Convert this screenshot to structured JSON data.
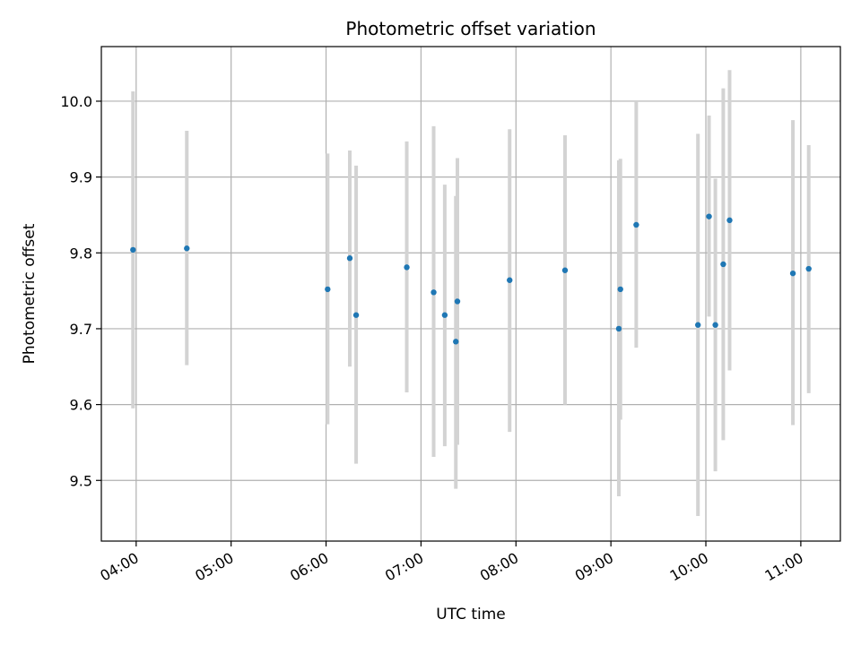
{
  "chart_data": {
    "type": "scatter",
    "title": "Photometric offset variation",
    "xlabel": "UTC time",
    "ylabel": "Photometric offset",
    "x_ticks": [
      "04:00",
      "05:00",
      "06:00",
      "07:00",
      "08:00",
      "09:00",
      "10:00",
      "11:00"
    ],
    "y_ticks": [
      "9.5",
      "9.6",
      "9.7",
      "9.8",
      "9.9",
      "10.0"
    ],
    "xlim": [
      "03:38",
      "11:25"
    ],
    "ylim": [
      9.42,
      10.072
    ],
    "grid": true,
    "marker_color": "#1f77b4",
    "errorbar_color": "#d3d3d3",
    "series": [
      {
        "points": [
          {
            "x": "03:58",
            "y": 9.804,
            "yerr": [
              9.595,
              10.013
            ]
          },
          {
            "x": "04:32",
            "y": 9.806,
            "yerr": [
              9.652,
              9.961
            ]
          },
          {
            "x": "06:01",
            "y": 9.752,
            "yerr": [
              9.574,
              9.931
            ]
          },
          {
            "x": "06:15",
            "y": 9.793,
            "yerr": [
              9.65,
              9.935
            ]
          },
          {
            "x": "06:19",
            "y": 9.718,
            "yerr": [
              9.522,
              9.915
            ]
          },
          {
            "x": "06:51",
            "y": 9.781,
            "yerr": [
              9.616,
              9.947
            ]
          },
          {
            "x": "07:08",
            "y": 9.748,
            "yerr": [
              9.531,
              9.967
            ]
          },
          {
            "x": "07:15",
            "y": 9.718,
            "yerr": [
              9.545,
              9.89
            ]
          },
          {
            "x": "07:22",
            "y": 9.683,
            "yerr": [
              9.489,
              9.875
            ]
          },
          {
            "x": "07:23",
            "y": 9.736,
            "yerr": [
              9.547,
              9.925
            ]
          },
          {
            "x": "07:56",
            "y": 9.764,
            "yerr": [
              9.564,
              9.963
            ]
          },
          {
            "x": "08:31",
            "y": 9.777,
            "yerr": [
              9.6,
              9.955
            ]
          },
          {
            "x": "09:05",
            "y": 9.7,
            "yerr": [
              9.479,
              9.922
            ]
          },
          {
            "x": "09:06",
            "y": 9.752,
            "yerr": [
              9.58,
              9.924
            ]
          },
          {
            "x": "09:16",
            "y": 9.837,
            "yerr": [
              9.675,
              10.0
            ]
          },
          {
            "x": "09:55",
            "y": 9.705,
            "yerr": [
              9.453,
              9.957
            ]
          },
          {
            "x": "10:02",
            "y": 9.848,
            "yerr": [
              9.716,
              9.981
            ]
          },
          {
            "x": "10:06",
            "y": 9.705,
            "yerr": [
              9.512,
              9.898
            ]
          },
          {
            "x": "10:11",
            "y": 9.785,
            "yerr": [
              9.553,
              10.017
            ]
          },
          {
            "x": "10:15",
            "y": 9.843,
            "yerr": [
              9.645,
              10.041
            ]
          },
          {
            "x": "10:55",
            "y": 9.773,
            "yerr": [
              9.573,
              9.975
            ]
          },
          {
            "x": "11:05",
            "y": 9.779,
            "yerr": [
              9.615,
              9.942
            ]
          }
        ]
      }
    ]
  }
}
